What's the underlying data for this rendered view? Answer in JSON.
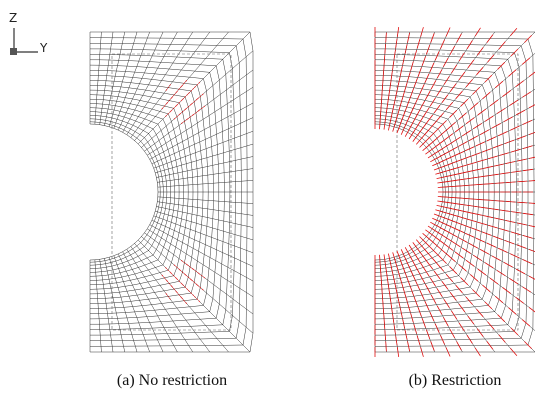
{
  "axis_labels": {
    "z": "Z",
    "y": "Y"
  },
  "panels": [
    {
      "caption": "(a) No restriction"
    },
    {
      "caption": "(b) Restriction"
    }
  ]
}
